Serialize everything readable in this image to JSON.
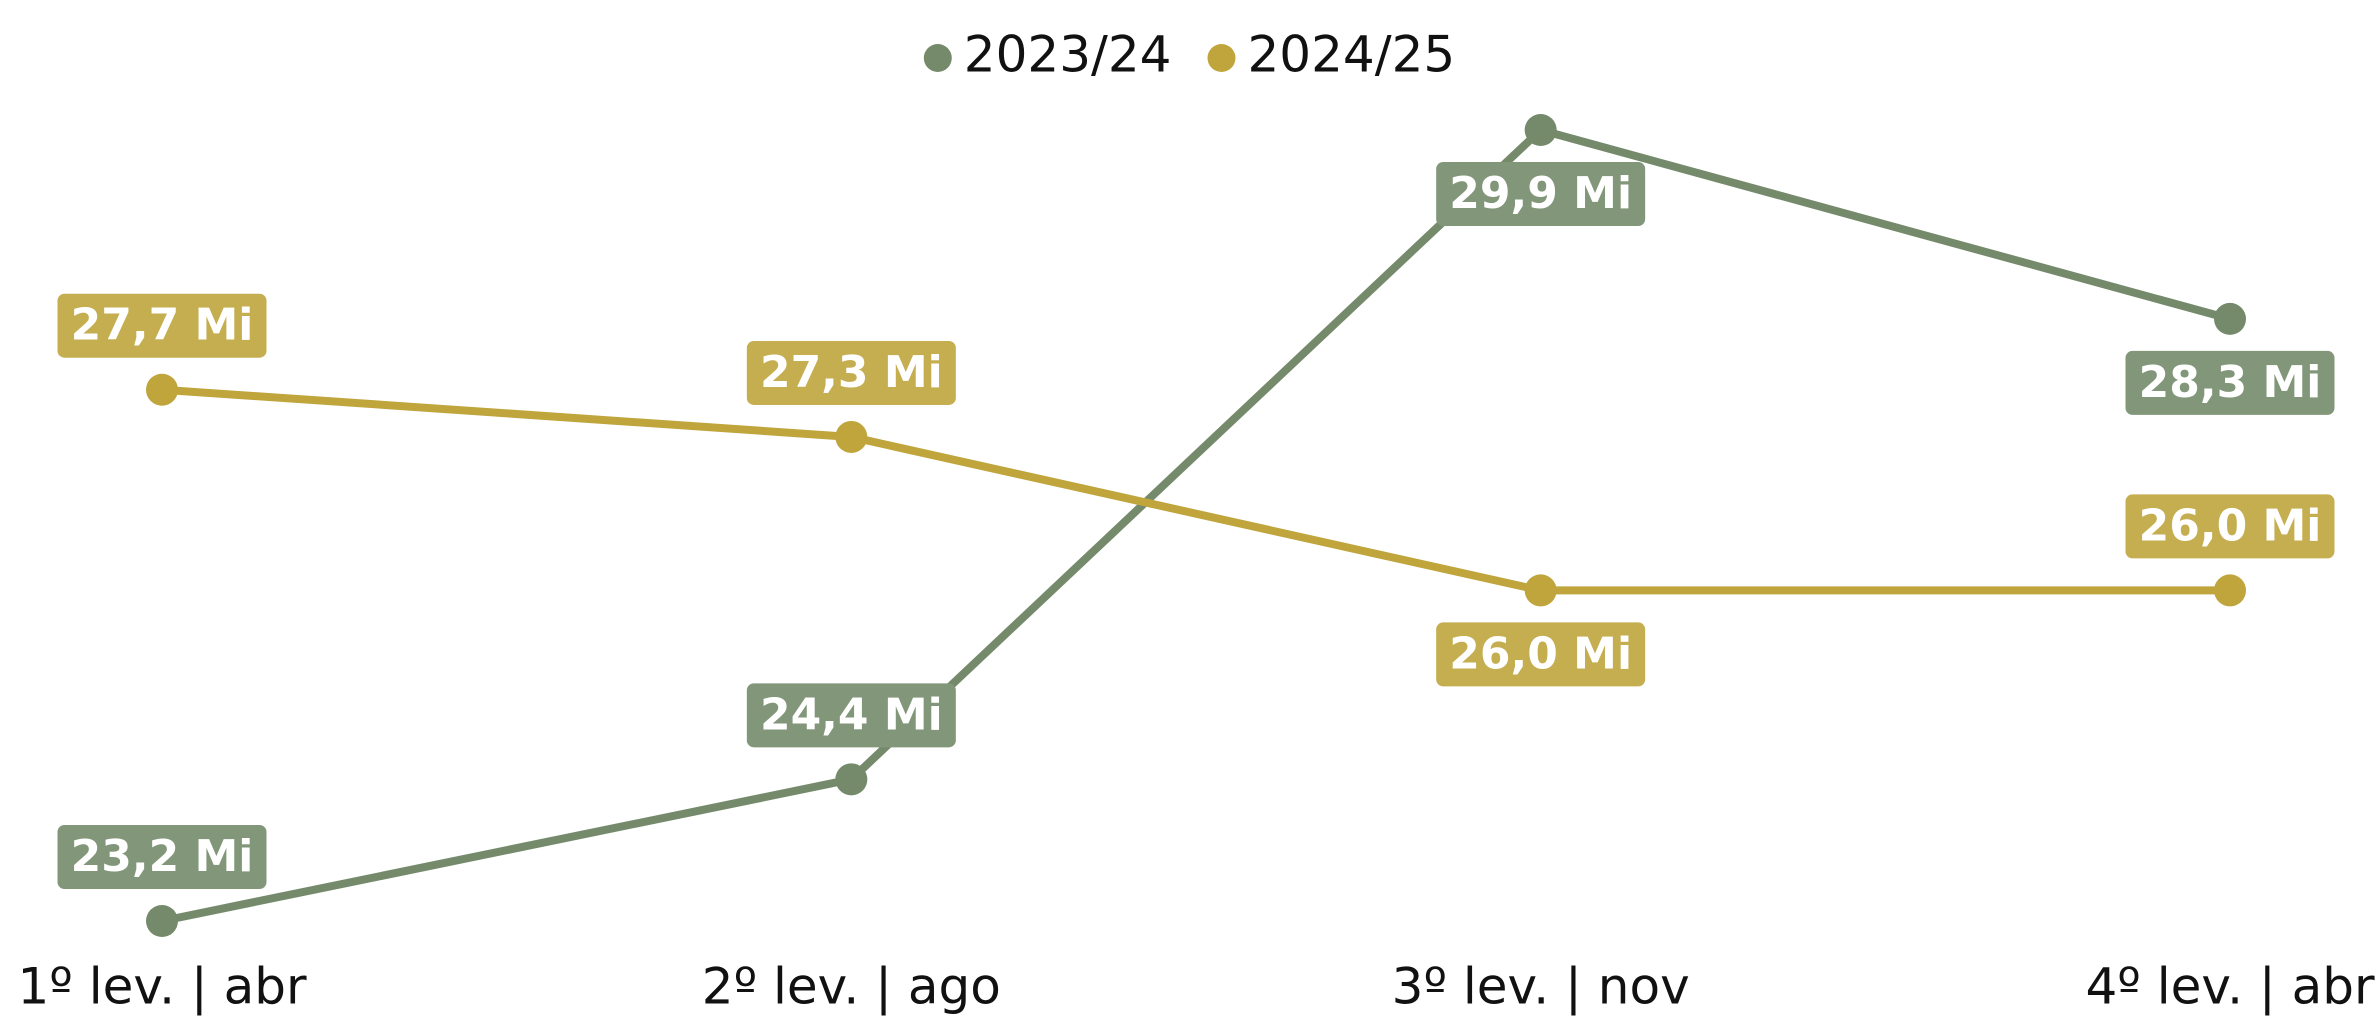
{
  "chart_data": {
    "type": "line",
    "categories": [
      "1º lev. | abr",
      "2º lev. | ago",
      "3º lev. | nov",
      "4º lev. | abr"
    ],
    "series": [
      {
        "name": "2023/24",
        "color": "#748a6b",
        "values": [
          23.2,
          24.4,
          29.9,
          28.3
        ],
        "value_labels": [
          "23,2 Mi",
          "24,4 Mi",
          "29,9 Mi",
          "28,3 Mi"
        ]
      },
      {
        "name": "2024/25",
        "color": "#bfa53c",
        "values": [
          27.7,
          27.3,
          26.0,
          26.0
        ],
        "value_labels": [
          "27,7 Mi",
          "27,3 Mi",
          "26,0 Mi",
          "26,0 Mi"
        ]
      }
    ],
    "legend": "top"
  }
}
